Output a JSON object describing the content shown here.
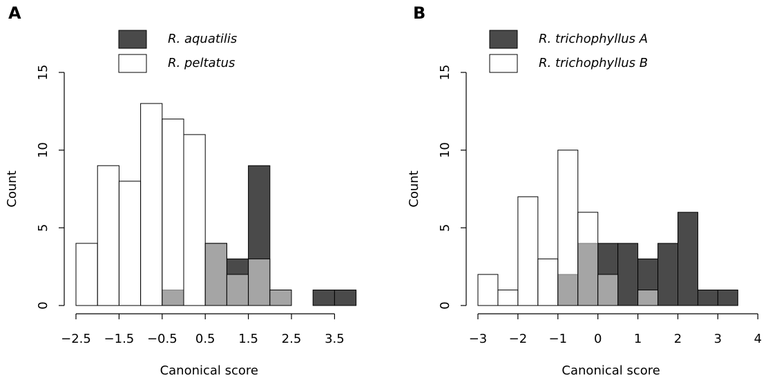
{
  "chart_data": [
    {
      "type": "histogram",
      "panel": "A",
      "xlabel": "Canonical score",
      "ylabel": "Count",
      "bins": [
        -2.5,
        -2,
        -1.5,
        -1,
        -0.5,
        0,
        0.5,
        1,
        1.5,
        2,
        2.5,
        3,
        3.5,
        4
      ],
      "series": [
        {
          "name": "R. aquatilis",
          "color": "#4a4a4a",
          "values": [
            0,
            0,
            0,
            0,
            1,
            0,
            4,
            3,
            9,
            1,
            0,
            1,
            1
          ]
        },
        {
          "name": "R. peltatus",
          "color": "rgba(255,255,255,0.5)",
          "values": [
            4,
            9,
            8,
            13,
            12,
            11,
            4,
            2,
            3,
            1,
            0,
            0,
            0
          ]
        }
      ],
      "xlim": [
        -2.5,
        4
      ],
      "ylim": [
        0,
        15
      ],
      "xticks": [
        {
          "value": -2.5,
          "label": "−2.5"
        },
        {
          "value": -1.5,
          "label": "−1.5"
        },
        {
          "value": -0.5,
          "label": "−0.5"
        },
        0.5,
        1.5,
        2.5,
        3.5
      ],
      "yticks": [
        0,
        5,
        10,
        15
      ]
    },
    {
      "type": "histogram",
      "panel": "B",
      "xlabel": "Canonical score",
      "ylabel": "Count",
      "bins": [
        -3,
        -2.5,
        -2,
        -1.5,
        -1,
        -0.5,
        0,
        0.5,
        1,
        1.5,
        2,
        2.5,
        3,
        3.5
      ],
      "series": [
        {
          "name": "R. trichophyllus A",
          "color": "#4a4a4a",
          "values": [
            0,
            0,
            0,
            0,
            2,
            4,
            4,
            4,
            3,
            4,
            6,
            1,
            1
          ]
        },
        {
          "name": "R. trichophyllus B",
          "color": "rgba(255,255,255,0.5)",
          "values": [
            2,
            1,
            7,
            3,
            10,
            6,
            2,
            0,
            1,
            0,
            0,
            0,
            0
          ]
        }
      ],
      "xlim": [
        -3,
        4
      ],
      "ylim": [
        0,
        15
      ],
      "xticks": [
        {
          "value": -3,
          "label": "−3"
        },
        {
          "value": -2,
          "label": "−2"
        },
        {
          "value": -1,
          "label": "−1"
        },
        0,
        1,
        2,
        3,
        4
      ],
      "yticks": [
        0,
        5,
        10,
        15
      ]
    }
  ]
}
